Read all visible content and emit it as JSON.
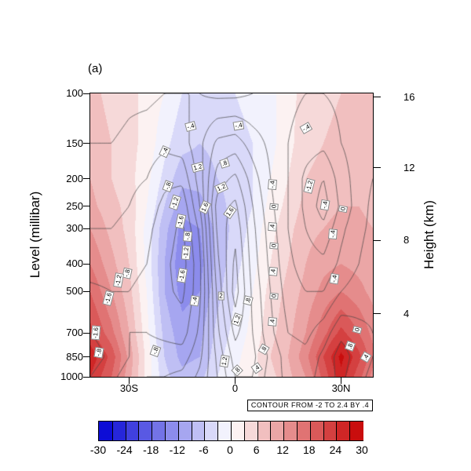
{
  "chart_data": {
    "type": "filled-contour-with-line-contours",
    "panel_label": "(a)",
    "ylabel_left": "Level (millibar)",
    "ylabel_right": "Height (km)",
    "note": "CONTOUR FROM -2 TO 2.4 BY .4",
    "x_axis": {
      "range_lat": [
        -41,
        39
      ],
      "ticks": [
        {
          "lat": -30,
          "label": "30S"
        },
        {
          "lat": 0,
          "label": "0"
        },
        {
          "lat": 30,
          "label": "30N"
        }
      ]
    },
    "y_axis_left": {
      "scale": "log-pressure",
      "ticks": [
        100,
        150,
        200,
        250,
        300,
        400,
        500,
        700,
        850,
        1000
      ]
    },
    "y_axis_right": {
      "ticks": [
        {
          "km": "16",
          "p": 103
        },
        {
          "km": "12",
          "p": 183
        },
        {
          "km": "8",
          "p": 330
        },
        {
          "km": "4",
          "p": 600
        }
      ]
    },
    "colorbar": {
      "min": -30,
      "max": 30,
      "segment_step": 3,
      "tick_labels": [
        "-30",
        "-24",
        "-18",
        "-12",
        "-6",
        "0",
        "6",
        "12",
        "18",
        "24",
        "30"
      ]
    },
    "shading_field": {
      "units_range": [
        -30,
        30
      ],
      "lats": [
        -41,
        -35,
        -30,
        -25,
        -20,
        -15,
        -10,
        -5,
        0,
        5,
        10,
        15,
        20,
        25,
        30,
        35,
        39
      ],
      "pressures": [
        100,
        150,
        200,
        250,
        300,
        400,
        500,
        700,
        850,
        1000
      ],
      "values": [
        [
          7,
          5,
          4,
          2,
          0,
          -3,
          -4,
          -4,
          -3,
          -2,
          -1,
          2,
          4,
          5,
          6,
          6,
          6
        ],
        [
          8,
          6,
          4,
          2,
          -2,
          -5,
          -6,
          -5,
          -4,
          -3,
          -1,
          2,
          5,
          6,
          7,
          7,
          7
        ],
        [
          9,
          6,
          4,
          1,
          -4,
          -8,
          -8,
          -6,
          -5,
          -3,
          0,
          3,
          6,
          7,
          8,
          8,
          8
        ],
        [
          10,
          7,
          5,
          0,
          -6,
          -11,
          -10,
          -7,
          -5,
          -3,
          1,
          4,
          7,
          8,
          9,
          9,
          8
        ],
        [
          12,
          8,
          5,
          -1,
          -8,
          -13,
          -12,
          -8,
          -5,
          -2,
          2,
          5,
          8,
          9,
          10,
          10,
          9
        ],
        [
          15,
          10,
          6,
          -1,
          -9,
          -14,
          -13,
          -8,
          -4,
          -1,
          3,
          6,
          9,
          11,
          12,
          11,
          10
        ],
        [
          18,
          12,
          7,
          0,
          -9,
          -13,
          -12,
          -7,
          -3,
          0,
          4,
          7,
          10,
          13,
          15,
          13,
          11
        ],
        [
          22,
          16,
          9,
          1,
          -7,
          -11,
          -10,
          -5,
          -2,
          1,
          5,
          8,
          12,
          17,
          22,
          18,
          14
        ],
        [
          26,
          20,
          11,
          2,
          -6,
          -10,
          -9,
          -4,
          -1,
          2,
          6,
          9,
          14,
          21,
          28,
          22,
          16
        ],
        [
          24,
          18,
          10,
          2,
          -5,
          -8,
          -7,
          -3,
          0,
          2,
          5,
          8,
          12,
          19,
          26,
          19,
          14
        ]
      ]
    },
    "line_contour_field": {
      "levels": {
        "from": -2,
        "to": 2.4,
        "by": 0.4
      },
      "lats": [
        -41,
        -35,
        -30,
        -25,
        -20,
        -15,
        -10,
        -5,
        0,
        5,
        10,
        15,
        20,
        25,
        30,
        35,
        39
      ],
      "pressures": [
        100,
        150,
        200,
        250,
        300,
        400,
        500,
        700,
        850,
        1000
      ],
      "values": [
        [
          -0.2,
          -0.2,
          -0.3,
          -0.3,
          -0.4,
          -0.4,
          -0.4,
          -0.5,
          -0.5,
          -0.4,
          -0.3,
          -0.3,
          -0.4,
          -0.4,
          -0.3,
          -0.2,
          -0.2
        ],
        [
          -0.4,
          -0.4,
          -0.5,
          -0.6,
          -0.7,
          -0.6,
          -0.1,
          0.5,
          0.6,
          0.2,
          -0.1,
          -0.4,
          -0.6,
          -0.7,
          -0.4,
          -0.2,
          -0.1
        ],
        [
          -0.6,
          -0.6,
          -0.7,
          -0.8,
          -1.1,
          -1.1,
          -0.2,
          1.0,
          1.3,
          0.6,
          0.0,
          -0.4,
          -0.9,
          -1.2,
          -0.6,
          -0.2,
          0.0
        ],
        [
          -0.7,
          -0.7,
          -0.8,
          -1.0,
          -1.3,
          -1.5,
          -0.4,
          1.4,
          1.7,
          0.8,
          0.1,
          -0.4,
          -0.9,
          -1.4,
          -0.7,
          -0.2,
          0.1
        ],
        [
          -0.8,
          -0.8,
          -0.9,
          -1.1,
          -1.4,
          -1.7,
          -0.7,
          1.3,
          1.9,
          0.9,
          0.2,
          -0.4,
          -0.8,
          -1.1,
          -0.5,
          -0.1,
          0.1
        ],
        [
          -1.0,
          -1.0,
          -1.1,
          -1.2,
          -1.5,
          -1.8,
          -0.9,
          1.1,
          2.1,
          1.0,
          0.3,
          -0.3,
          -0.6,
          -0.7,
          -0.3,
          0.0,
          0.2
        ],
        [
          -1.3,
          -1.2,
          -1.2,
          -1.3,
          -1.5,
          -1.7,
          -0.9,
          0.9,
          2.2,
          1.1,
          0.4,
          -0.2,
          -0.4,
          -0.4,
          0.0,
          0.2,
          0.3
        ],
        [
          -1.6,
          -1.4,
          -1.2,
          -1.2,
          -1.3,
          -1.4,
          -0.7,
          0.7,
          1.7,
          1.2,
          0.5,
          0.0,
          -0.1,
          0.2,
          0.7,
          0.5,
          0.4
        ],
        [
          -1.8,
          -1.5,
          -1.2,
          -1.0,
          -1.0,
          -1.0,
          -0.5,
          0.5,
          1.4,
          1.3,
          0.7,
          0.2,
          0.1,
          0.5,
          1.0,
          0.6,
          0.4
        ],
        [
          -1.6,
          -1.3,
          -1.0,
          -0.8,
          -0.8,
          -0.7,
          -0.3,
          0.4,
          1.2,
          1.2,
          0.6,
          0.3,
          0.2,
          0.6,
          0.9,
          0.5,
          0.3
        ]
      ]
    },
    "contour_labels": [
      {
        "lat": -20,
        "p": 160,
        "t": "-.4",
        "r": -65
      },
      {
        "lat": -12.5,
        "p": 131,
        "t": "-.4",
        "r": -15
      },
      {
        "lat": 1,
        "p": 130,
        "t": "-.4",
        "r": -10
      },
      {
        "lat": -19,
        "p": 212,
        "t": "-.8",
        "r": -70
      },
      {
        "lat": -17,
        "p": 243,
        "t": "-1.2",
        "r": -72
      },
      {
        "lat": -15.5,
        "p": 282,
        "t": "-1.6",
        "r": -78
      },
      {
        "lat": -13.5,
        "p": 320,
        "t": "-.8",
        "r": -85
      },
      {
        "lat": -14,
        "p": 365,
        "t": "-1.2",
        "r": -85
      },
      {
        "lat": -15,
        "p": 440,
        "t": "-1.6",
        "r": -80
      },
      {
        "lat": -11.5,
        "p": 540,
        "t": "-.4",
        "r": -80
      },
      {
        "lat": -22.5,
        "p": 810,
        "t": "-.8",
        "r": -70
      },
      {
        "lat": -30.5,
        "p": 430,
        "t": "-.8",
        "r": -78
      },
      {
        "lat": -33,
        "p": 455,
        "t": "-1.2",
        "r": -80
      },
      {
        "lat": -36,
        "p": 530,
        "t": "-1.6",
        "r": -75
      },
      {
        "lat": -39.5,
        "p": 700,
        "t": "-1.6",
        "r": -85
      },
      {
        "lat": -38.5,
        "p": 820,
        "t": "-.8",
        "r": -80
      },
      {
        "lat": -10.5,
        "p": 182,
        "t": "1.2",
        "r": -15
      },
      {
        "lat": -3,
        "p": 176,
        "t": ".8",
        "r": -18
      },
      {
        "lat": -4,
        "p": 215,
        "t": "1.2",
        "r": -25
      },
      {
        "lat": -8.5,
        "p": 252,
        "t": "1.6",
        "r": -65
      },
      {
        "lat": -1.5,
        "p": 262,
        "t": "1.6",
        "r": -55
      },
      {
        "lat": -4,
        "p": 520,
        "t": "2",
        "r": 0
      },
      {
        "lat": 3.7,
        "p": 538,
        "t": ".8",
        "r": -75
      },
      {
        "lat": 0.5,
        "p": 628,
        "t": "1.2",
        "r": -70
      },
      {
        "lat": -3,
        "p": 880,
        "t": "1.2",
        "r": -80
      },
      {
        "lat": 0.5,
        "p": 950,
        "t": ".8",
        "r": -45
      },
      {
        "lat": 10.5,
        "p": 210,
        "t": "-.4",
        "r": -85
      },
      {
        "lat": 11,
        "p": 250,
        "t": "0",
        "r": -85
      },
      {
        "lat": 10.5,
        "p": 295,
        "t": ".4",
        "r": -85
      },
      {
        "lat": 11,
        "p": 345,
        "t": "0",
        "r": -85
      },
      {
        "lat": 10.8,
        "p": 425,
        "t": ".4",
        "r": -85
      },
      {
        "lat": 11,
        "p": 520,
        "t": "0",
        "r": -85
      },
      {
        "lat": 10.5,
        "p": 640,
        "t": ".4",
        "r": -85
      },
      {
        "lat": 8,
        "p": 800,
        "t": ".8",
        "r": -60
      },
      {
        "lat": 6,
        "p": 930,
        "t": ".4",
        "r": -35
      },
      {
        "lat": 20,
        "p": 132,
        "t": "-.4",
        "r": -30
      },
      {
        "lat": 21,
        "p": 212,
        "t": "-1.2",
        "r": -75
      },
      {
        "lat": 25.5,
        "p": 248,
        "t": "-.4",
        "r": -80
      },
      {
        "lat": 30.5,
        "p": 255,
        "t": "0",
        "r": -80
      },
      {
        "lat": 27.7,
        "p": 313,
        "t": "-.4",
        "r": -85
      },
      {
        "lat": 28,
        "p": 450,
        "t": "-.4",
        "r": -80
      },
      {
        "lat": 34.5,
        "p": 680,
        "t": "0",
        "r": -75
      },
      {
        "lat": 32.5,
        "p": 780,
        "t": ".8",
        "r": -70
      },
      {
        "lat": 37,
        "p": 850,
        "t": ".4",
        "r": -60
      }
    ]
  },
  "layout_colors": {
    "deep_blue": "#0d0dd4",
    "deep_red": "#c60e0e",
    "line": "#444444",
    "frame": "#000000"
  }
}
